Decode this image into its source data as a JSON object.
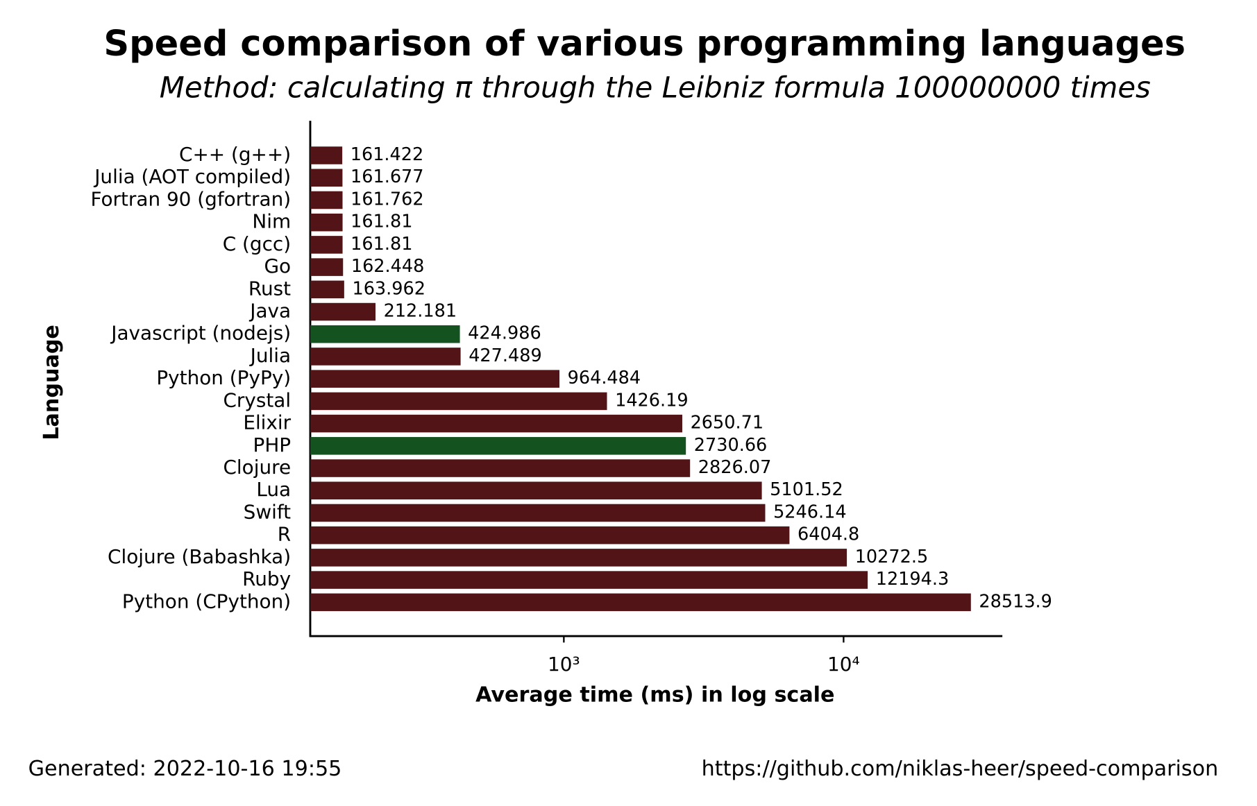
{
  "chart_data": {
    "type": "bar",
    "orientation": "horizontal",
    "title": "Speed comparison of various programming languages",
    "subtitle": "Method: calculating π through the Leibniz formula 100000000 times",
    "x_label": "Average time (ms) in log scale",
    "y_label": "Language",
    "categories": [
      "C++ (g++)",
      "Julia (AOT compiled)",
      "Fortran 90 (gfortran)",
      "Nim",
      "C (gcc)",
      "Go",
      "Rust",
      "Java",
      "Javascript (nodejs)",
      "Julia",
      "Python (PyPy)",
      "Crystal",
      "Elixir",
      "PHP",
      "Clojure",
      "Lua",
      "Swift",
      "R",
      "Clojure (Babashka)",
      "Ruby",
      "Python (CPython)"
    ],
    "values": [
      161.422,
      161.677,
      161.762,
      161.81,
      161.81,
      162.448,
      163.962,
      212.181,
      424.986,
      427.489,
      964.484,
      1426.19,
      2650.71,
      2730.66,
      2826.07,
      5101.52,
      5246.14,
      6404.8,
      10272.5,
      12194.3,
      28513.9
    ],
    "colors": [
      "#521417",
      "#521417",
      "#521417",
      "#521417",
      "#521417",
      "#521417",
      "#521417",
      "#521417",
      "#145220",
      "#521417",
      "#521417",
      "#521417",
      "#521417",
      "#145220",
      "#521417",
      "#521417",
      "#521417",
      "#521417",
      "#521417",
      "#521417",
      "#521417"
    ],
    "x_scale": "log",
    "xlim": [
      124,
      36700
    ],
    "xticks": [
      {
        "value": 1000,
        "label": "10³"
      },
      {
        "value": 10000,
        "label": "10⁴"
      }
    ],
    "footer_left": "Generated: 2022-10-16 19:55",
    "footer_right": "https://github.com/niklas-heer/speed-comparison"
  }
}
